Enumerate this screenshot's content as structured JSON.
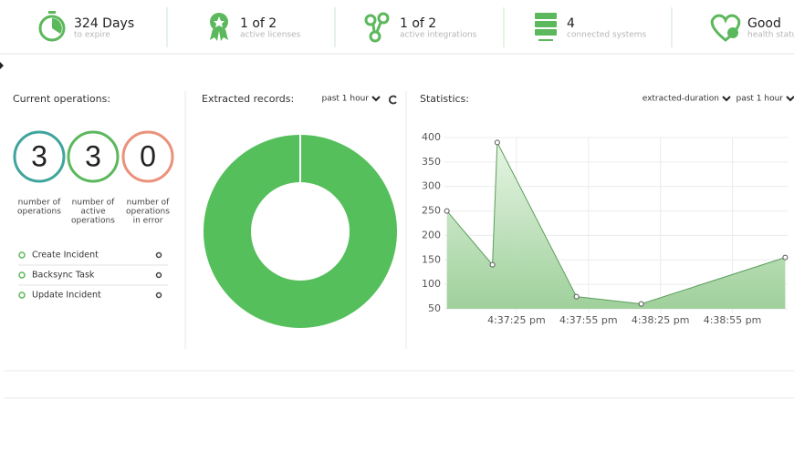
{
  "header": {
    "items": [
      {
        "value": "324 Days",
        "label": "to expire"
      },
      {
        "value": "1 of 2",
        "label": "active licenses"
      },
      {
        "value": "1 of 2",
        "label": "active integrations"
      },
      {
        "value": "4",
        "label": "connected systems"
      },
      {
        "value": "Good",
        "label": "health status"
      }
    ]
  },
  "operations": {
    "title": "Current operations:",
    "counters": [
      {
        "value": 3,
        "label": [
          "number of",
          "operations"
        ],
        "color": "#3fa59c"
      },
      {
        "value": 3,
        "label": [
          "number of",
          "active",
          "operations"
        ],
        "color": "#5cb85c"
      },
      {
        "value": 0,
        "label": [
          "number of",
          "operations",
          "in error"
        ],
        "color": "#ea917b"
      }
    ],
    "list": [
      "Create Incident",
      "Backsync Task",
      "Update Incident"
    ]
  },
  "extracted": {
    "title": "Extracted records:",
    "range": "past 1 hour",
    "type": "pie",
    "values": [
      100
    ],
    "color": "#55bf5c"
  },
  "statistics": {
    "title": "Statistics:",
    "metric": "extracted-duration",
    "range": "past 1 hour",
    "type": "line",
    "x": [
      "4:36:56 pm",
      "4:37:15 pm",
      "4:37:17 pm",
      "4:37:50 pm",
      "4:38:17 pm",
      "4:39:17 pm"
    ],
    "values": [
      250,
      140,
      390,
      75,
      60,
      155
    ],
    "xlim": [
      "4:36:55 pm",
      "4:39:18 pm"
    ],
    "xticks": [
      "4:37:25 pm",
      "4:37:55 pm",
      "4:38:25 pm",
      "4:38:55 pm"
    ],
    "ylim": [
      50,
      400
    ],
    "yticks": [
      50,
      100,
      150,
      200,
      250,
      300,
      350,
      400
    ],
    "color": "#5a9e5a",
    "grid": true
  }
}
